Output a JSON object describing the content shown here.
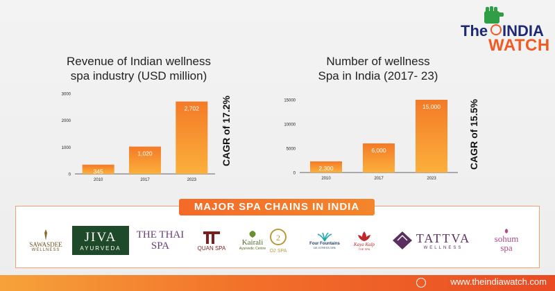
{
  "logo": {
    "the": "The",
    "india": "INDIA",
    "watch": "WATCH"
  },
  "chart_data": [
    {
      "type": "bar",
      "title": "Revenue of Indian wellness\nspa industry (USD million)",
      "categories": [
        "2010",
        "2017",
        "2023"
      ],
      "values": [
        345,
        1020,
        2702
      ],
      "value_labels": [
        "345",
        "1,020",
        "2,702"
      ],
      "yticks": [
        0,
        1000,
        2000,
        3000
      ],
      "ytick_labels": [
        "0",
        "1000",
        "2000",
        "3000"
      ],
      "ylim": [
        0,
        3000
      ],
      "annotation": "CAGR of 17.2%",
      "grid": false
    },
    {
      "type": "bar",
      "title": "Number of wellness\nSpa in India (2017- 23)",
      "categories": [
        "2010",
        "2017",
        "2023"
      ],
      "values": [
        2300,
        6000,
        15000
      ],
      "value_labels": [
        "2,300",
        "6,000",
        "15,000"
      ],
      "yticks": [
        0,
        5000,
        10000,
        15000
      ],
      "ytick_labels": [
        "0",
        "5000",
        "10000",
        "15000"
      ],
      "ylim": [
        0,
        15000
      ],
      "annotation": "CAGR of 15.5%",
      "grid": false
    }
  ],
  "colors": {
    "bar_top": "#f47a27",
    "bar_bottom": "#fbb03b",
    "accent": "#f15a22",
    "navy": "#1d2a73",
    "green": "#2f9e44"
  },
  "chains": {
    "heading": "MAJOR SPA CHAINS IN INDIA",
    "brands": [
      {
        "name": "SAWASDEE",
        "sub": "WELLNESS"
      },
      {
        "name": "JIVA",
        "sub": "AYURVEDA"
      },
      {
        "name": "THE THAI SPA",
        "sub": ""
      },
      {
        "name": "QUAN SPA",
        "sub": ""
      },
      {
        "name": "Kairali",
        "sub": "Ayurvedic Centre"
      },
      {
        "name": "O2 SPA",
        "sub": ""
      },
      {
        "name": "Four Fountains",
        "sub": "DE-STRESS SPA"
      },
      {
        "name": "Kaya Kalp",
        "sub": "THE SPA"
      },
      {
        "name": "TATTVA",
        "sub": "WELLNESS"
      },
      {
        "name": "sohum",
        "sub": "spa"
      }
    ]
  },
  "footer": {
    "url": "www.theindiawatch.com"
  }
}
